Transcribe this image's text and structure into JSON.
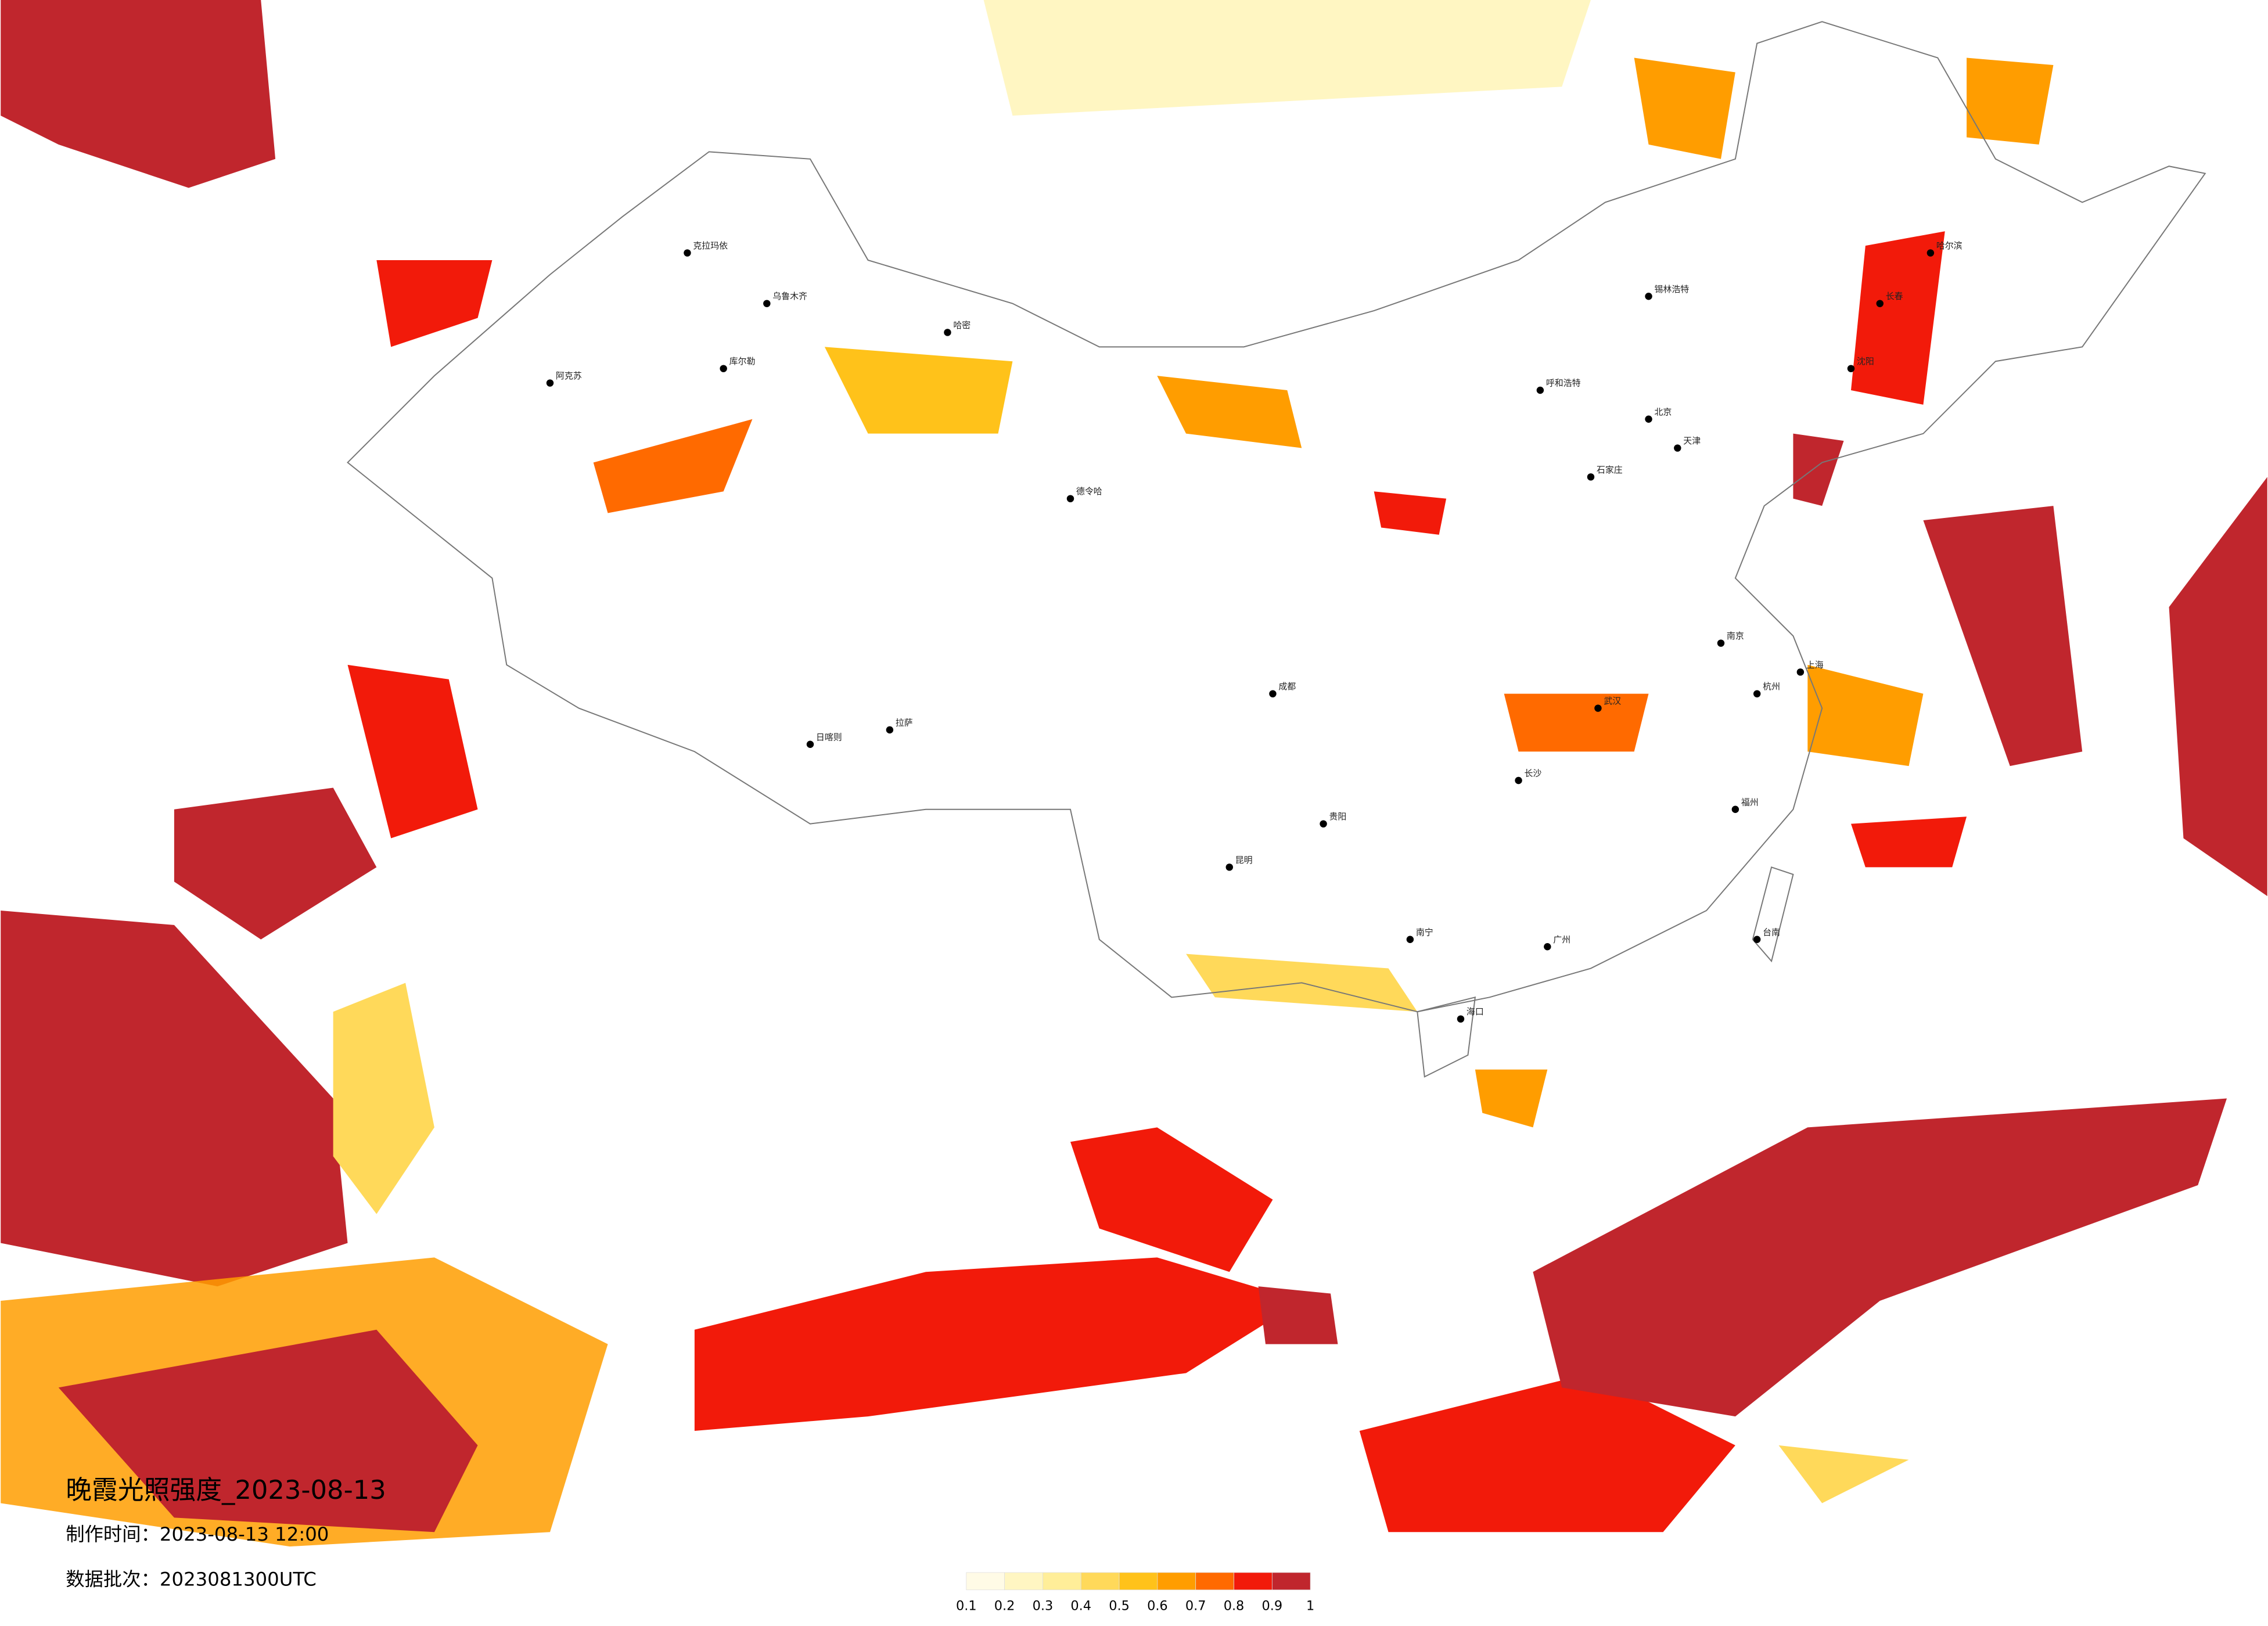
{
  "title": "晚霞光照强度_2023-08-13",
  "made_time": "制作时间：2023-08-13 12:00",
  "batch": "数据批次：2023081300UTC",
  "legend": {
    "colors": [
      "#fffbe6",
      "#fff6c2",
      "#ffee99",
      "#ffd95a",
      "#ffc21a",
      "#ff9d00",
      "#ff6a00",
      "#f21a0a",
      "#c0262d"
    ],
    "ticks": [
      0.1,
      0.2,
      0.3,
      0.4,
      0.5,
      0.6,
      0.7,
      0.8,
      0.9,
      1
    ]
  },
  "cities": [
    "克拉玛依",
    "乌鲁木齐",
    "库尔勒",
    "阿克苏",
    "哈密",
    "德令哈",
    "拉萨",
    "日喀则",
    "成都",
    "昆明",
    "贵阳",
    "南宁",
    "海口",
    "广州",
    "长沙",
    "武汉",
    "南京",
    "上海",
    "杭州",
    "北京",
    "天津",
    "石家庄",
    "呼和浩特",
    "锡林浩特",
    "哈尔滨",
    "长春",
    "沈阳",
    "台南",
    "福州"
  ]
}
